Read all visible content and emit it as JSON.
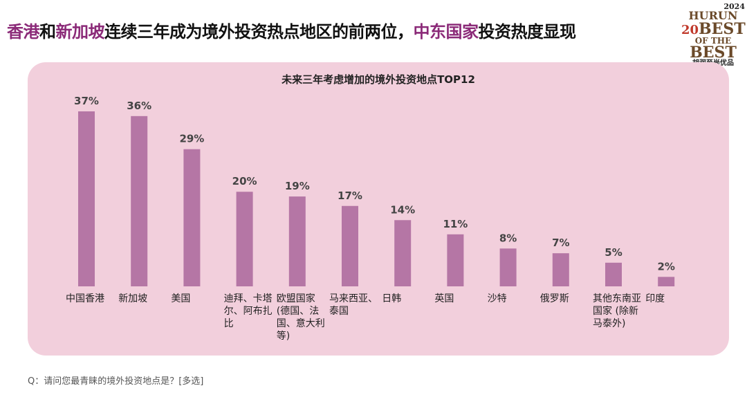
{
  "header": {
    "title_parts": [
      {
        "text": "香港",
        "color": "#8b2a78"
      },
      {
        "text": "和",
        "color": "#111111"
      },
      {
        "text": "新加坡",
        "color": "#8b2a78"
      },
      {
        "text": "连续三年成为境外投资热点地区的前两位，",
        "color": "#111111"
      },
      {
        "text": "中东国家",
        "color": "#8b2a78"
      },
      {
        "text": "投资热度显现",
        "color": "#111111"
      }
    ]
  },
  "logo": {
    "year": "2024",
    "brand": "HURUN",
    "number": "20",
    "line1": "BEST",
    "line2": "OF THE",
    "line3": "BEST",
    "tagline": "胡润至尚优品"
  },
  "chart_data": {
    "type": "bar",
    "title": "未来三年考虑增加的境外投资地点TOP12",
    "categories": [
      "中国香港",
      "新加坡",
      "美国",
      "迪拜、卡塔尔、阿布扎比",
      "欧盟国家 (德国、法国、意大利等)",
      "马来西亚、泰国",
      "日韩",
      "英国",
      "沙特",
      "俄罗斯",
      "其他东南亚国家 (除新马泰外)",
      "印度"
    ],
    "values": [
      37,
      36,
      29,
      20,
      19,
      17,
      14,
      11,
      8,
      7,
      5,
      2
    ],
    "value_labels": [
      "37%",
      "36%",
      "29%",
      "20%",
      "19%",
      "17%",
      "14%",
      "11%",
      "8%",
      "7%",
      "5%",
      "2%"
    ],
    "color": "#b576a5"
  },
  "footer": {
    "question": "Q：请问您最青睐的境外投资地点是？[多选]"
  }
}
